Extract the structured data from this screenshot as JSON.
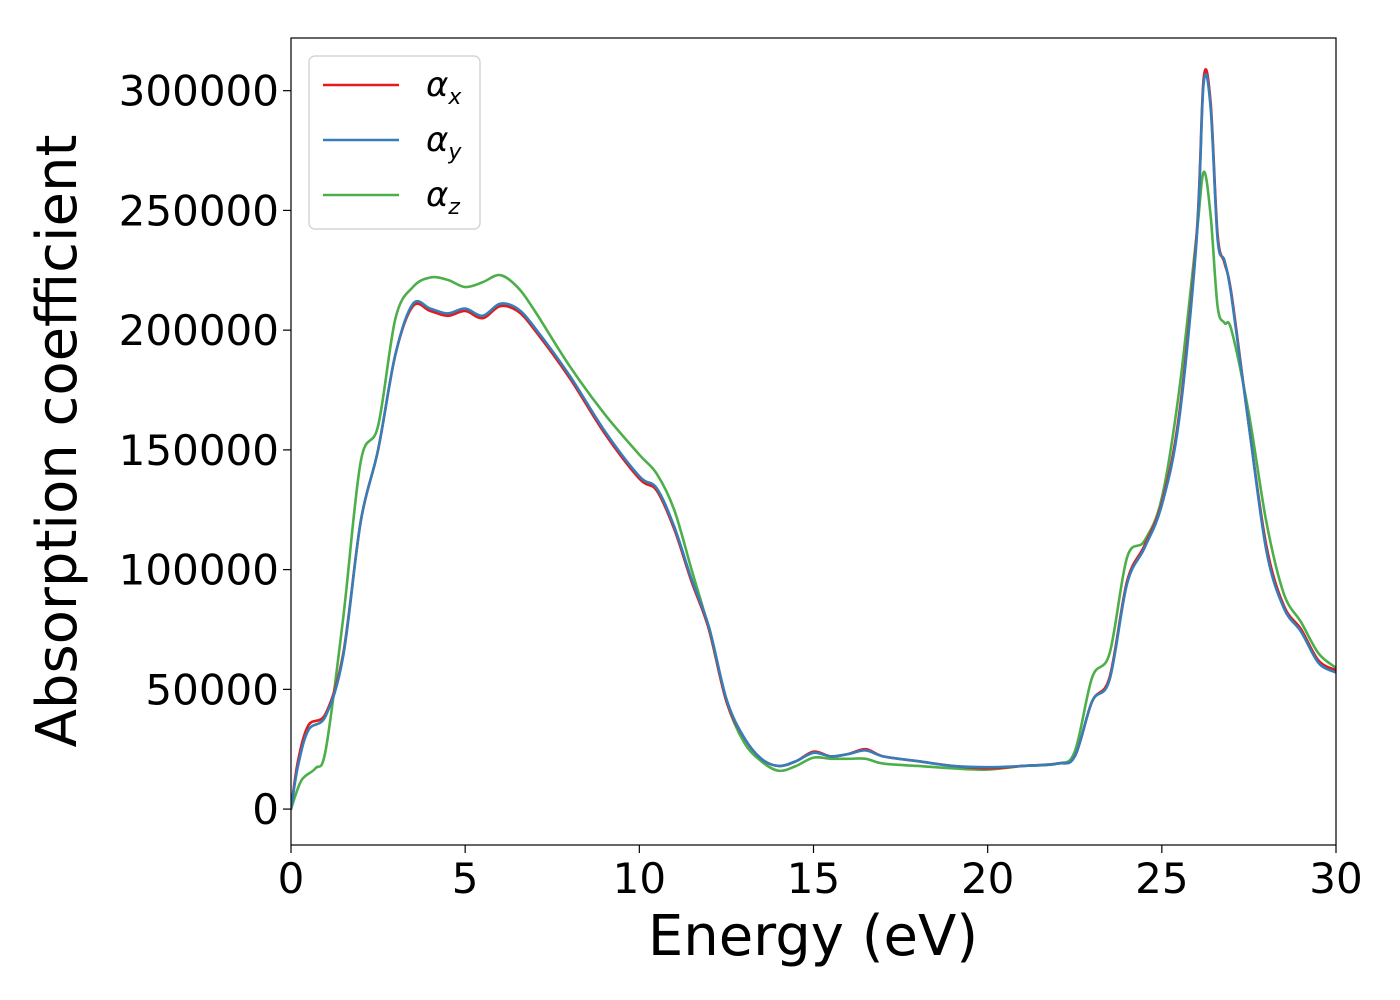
{
  "chart_data": {
    "type": "line",
    "title": "",
    "xlabel": "Energy (eV)",
    "ylabel": "Absorption coefficient",
    "xlim": [
      0,
      30
    ],
    "ylim": [
      -15000,
      322000
    ],
    "xticks": [
      0,
      5,
      10,
      15,
      20,
      25,
      30
    ],
    "xtick_labels": [
      "0",
      "5",
      "10",
      "15",
      "20",
      "25",
      "30"
    ],
    "yticks": [
      0,
      50000,
      100000,
      150000,
      200000,
      250000,
      300000
    ],
    "ytick_labels": [
      "0",
      "50000",
      "100000",
      "150000",
      "200000",
      "250000",
      "300000"
    ],
    "grid": false,
    "legend_position": "top-left",
    "series": [
      {
        "name": "α_x",
        "symbol": "α",
        "subscript": "x",
        "color": "#e41a1c",
        "x": [
          0,
          0.2,
          0.5,
          1.0,
          1.5,
          2.0,
          2.5,
          3.0,
          3.5,
          4.0,
          4.5,
          5.0,
          5.5,
          6.0,
          6.5,
          7.0,
          8.0,
          9.0,
          10.0,
          10.5,
          11.0,
          11.5,
          12.0,
          12.5,
          13.0,
          13.5,
          14.0,
          14.5,
          15.0,
          15.5,
          16.0,
          16.5,
          17.0,
          18.0,
          19.0,
          20.0,
          21.0,
          22.0,
          22.5,
          23.0,
          23.5,
          24.0,
          24.5,
          25.0,
          25.5,
          26.0,
          26.2,
          26.4,
          26.6,
          26.8,
          27.0,
          27.5,
          28.0,
          28.5,
          29.0,
          29.5,
          30.0
        ],
        "y": [
          0,
          20000,
          35000,
          40000,
          65000,
          120000,
          150000,
          190000,
          210000,
          208000,
          206000,
          208000,
          205000,
          210000,
          208000,
          200000,
          180000,
          157000,
          138000,
          133000,
          117000,
          95000,
          75000,
          45000,
          30000,
          21000,
          18000,
          20000,
          24000,
          22000,
          23000,
          25000,
          22000,
          20000,
          18000,
          17000,
          18000,
          19000,
          22000,
          45000,
          55000,
          95000,
          110000,
          128000,
          165000,
          240000,
          305000,
          295000,
          240000,
          228000,
          215000,
          160000,
          110000,
          85000,
          75000,
          62000,
          58000
        ]
      },
      {
        "name": "α_y",
        "symbol": "α",
        "subscript": "y",
        "color": "#377eb8",
        "x": [
          0,
          0.2,
          0.5,
          1.0,
          1.5,
          2.0,
          2.5,
          3.0,
          3.5,
          4.0,
          4.5,
          5.0,
          5.5,
          6.0,
          6.5,
          7.0,
          8.0,
          9.0,
          10.0,
          10.5,
          11.0,
          11.5,
          12.0,
          12.5,
          13.0,
          13.5,
          14.0,
          14.5,
          15.0,
          15.5,
          16.0,
          16.5,
          17.0,
          18.0,
          19.0,
          20.0,
          21.0,
          22.0,
          22.5,
          23.0,
          23.5,
          24.0,
          24.5,
          25.0,
          25.5,
          26.0,
          26.2,
          26.4,
          26.6,
          26.8,
          27.0,
          27.5,
          28.0,
          28.5,
          29.0,
          29.5,
          30.0
        ],
        "y": [
          0,
          18000,
          33000,
          39000,
          64000,
          120000,
          150000,
          190000,
          211000,
          209000,
          207000,
          209000,
          206000,
          211000,
          209000,
          201000,
          181000,
          158000,
          139000,
          134000,
          118000,
          96000,
          76000,
          46000,
          30000,
          21000,
          18000,
          20000,
          23500,
          22000,
          23000,
          24500,
          22000,
          20000,
          18000,
          17500,
          18000,
          19000,
          22000,
          45000,
          54000,
          94000,
          109000,
          127000,
          163000,
          238000,
          303000,
          293000,
          238000,
          229000,
          214000,
          160000,
          108000,
          84000,
          74000,
          61000,
          57000
        ]
      },
      {
        "name": "α_z",
        "symbol": "α",
        "subscript": "z",
        "color": "#4daf4a",
        "x": [
          0,
          0.3,
          0.7,
          1.0,
          1.5,
          2.0,
          2.5,
          3.0,
          3.5,
          4.0,
          4.5,
          5.0,
          5.5,
          6.0,
          6.5,
          7.0,
          8.0,
          9.0,
          10.0,
          10.5,
          11.0,
          11.5,
          12.0,
          12.5,
          13.0,
          13.5,
          14.0,
          14.5,
          15.0,
          15.5,
          16.0,
          16.5,
          17.0,
          18.0,
          19.0,
          20.0,
          21.0,
          22.0,
          22.5,
          23.0,
          23.5,
          24.0,
          24.5,
          25.0,
          25.5,
          26.0,
          26.2,
          26.4,
          26.6,
          26.8,
          27.0,
          27.5,
          28.0,
          28.5,
          29.0,
          29.5,
          30.0
        ],
        "y": [
          0,
          12000,
          17000,
          25000,
          80000,
          145000,
          160000,
          205000,
          218000,
          222000,
          221000,
          218000,
          220000,
          223000,
          218000,
          208000,
          185000,
          165000,
          148000,
          140000,
          125000,
          100000,
          75000,
          45000,
          28000,
          20000,
          16000,
          18000,
          21500,
          21000,
          21000,
          21000,
          19000,
          18000,
          17000,
          16500,
          18000,
          19000,
          24000,
          55000,
          65000,
          105000,
          112000,
          130000,
          175000,
          240000,
          266000,
          248000,
          210000,
          203000,
          200000,
          165000,
          120000,
          90000,
          78000,
          65000,
          59000
        ]
      }
    ]
  }
}
